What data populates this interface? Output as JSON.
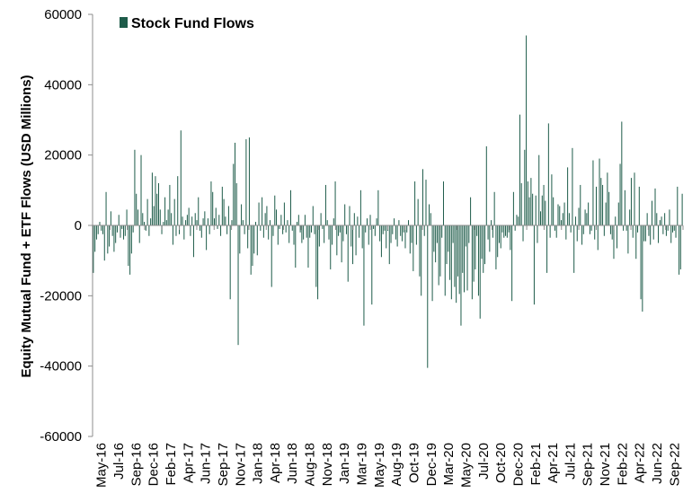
{
  "chart_data": {
    "type": "bar",
    "title": "",
    "xlabel": "",
    "ylabel": "Equity Mutual Fund + ETF Flows (USD Millions)",
    "ylim": [
      -60000,
      60000
    ],
    "yticks": [
      60000,
      40000,
      20000,
      0,
      -20000,
      -40000,
      -60000
    ],
    "ytick_labels": [
      "60000",
      "40000",
      "20000",
      "0",
      "-20000",
      "-40000",
      "-60000"
    ],
    "xtick_labels": [
      "May-16",
      "Jul-16",
      "Sep-16",
      "Dec-16",
      "Feb-17",
      "Apr-17",
      "Jun-17",
      "Sep-17",
      "Nov-17",
      "Jan-18",
      "Apr-18",
      "Jun-18",
      "Aug-18",
      "Nov-18",
      "Jan-19",
      "Mar-19",
      "May-19",
      "Aug-19",
      "Oct-19",
      "Dec-19",
      "Mar-20",
      "May-20",
      "Jul-20",
      "Oct-20",
      "Dec-20",
      "Feb-21",
      "Apr-21",
      "Jul-21",
      "Sep-21",
      "Nov-21",
      "Feb-22",
      "Apr-22",
      "Jun-22",
      "Sep-22"
    ],
    "legend": {
      "position": "top-left",
      "entries": [
        "Stock Fund Flows"
      ]
    },
    "colors": {
      "bar": "#1e5c4a",
      "axis": "#8c8c8c"
    },
    "grid": false,
    "series": [
      {
        "name": "Stock Fund Flows",
        "frequency": "weekly",
        "values": [
          -13500,
          -7500,
          -4000,
          -2500,
          1000,
          -1500,
          -2500,
          -10000,
          9500,
          -8000,
          -6000,
          4000,
          -3000,
          -7500,
          -5000,
          -2000,
          3000,
          -3500,
          -1000,
          -4000,
          -3000,
          4500,
          -11500,
          -14000,
          -8000,
          -2000,
          21500,
          9000,
          4500,
          -5000,
          20000,
          3500,
          1000,
          -1500,
          7500,
          -3000,
          2000,
          15000,
          5500,
          14000,
          9000,
          12000,
          4500,
          -2500,
          1000,
          8000,
          1500,
          4500,
          11500,
          3500,
          -5500,
          7500,
          -3000,
          14000,
          -2500,
          27000,
          2500,
          -4000,
          1500,
          3000,
          5000,
          -3000,
          2500,
          -9000,
          3500,
          1500,
          8000,
          -1500,
          -3500,
          2000,
          4000,
          -7000,
          2000,
          -2500,
          12500,
          9500,
          2000,
          5000,
          -1000,
          3000,
          -3000,
          11000,
          7500,
          2500,
          -2500,
          5500,
          -21000,
          1500,
          17500,
          23500,
          12000,
          -34000,
          -8000,
          6000,
          1500,
          -2500,
          24500,
          -6500,
          25000,
          -14000,
          -11500,
          -8000,
          1000,
          -8500,
          6500,
          -1500,
          8000,
          -3500,
          3500,
          5500,
          -4000,
          1500,
          -17500,
          -3000,
          8500,
          4500,
          -5500,
          -1000,
          3000,
          -2500,
          6500,
          -2000,
          1500,
          -5000,
          10000,
          -1500,
          -5500,
          -12000,
          1000,
          3000,
          -2000,
          -5000,
          -4000,
          3000,
          -3500,
          -12000,
          -3500,
          -2000,
          5500,
          -2500,
          -17500,
          -21000,
          -6000,
          3500,
          -1000,
          -5000,
          11500,
          1500,
          -4000,
          -12500,
          -5500,
          2000,
          12500,
          -8500,
          -3000,
          -2000,
          -10500,
          -4500,
          6000,
          -2500,
          -16000,
          5500,
          -6000,
          -11000,
          3500,
          -8500,
          2500,
          -3500,
          10000,
          -6500,
          -28500,
          -2000,
          2000,
          -5500,
          3000,
          -22500,
          -1000,
          -3000,
          2000,
          10000,
          -4500,
          -9000,
          -2500,
          -1500,
          -6500,
          -1500,
          -11000,
          -5000,
          -2500,
          2000,
          -4000,
          -6000,
          1500,
          -3000,
          -4500,
          -2000,
          -6500,
          -2000,
          1500,
          -8000,
          -5000,
          -13000,
          12500,
          -5500,
          7500,
          -14500,
          -20000,
          16000,
          -3000,
          13000,
          -40500,
          6000,
          3500,
          -21500,
          -7500,
          -10500,
          -5000,
          -17000,
          -14500,
          -3500,
          12500,
          -20000,
          -11000,
          -7500,
          -15500,
          -21000,
          -5000,
          -17500,
          -22000,
          -14500,
          -19500,
          -28500,
          -13500,
          -19000,
          -6000,
          -18500,
          -5000,
          8000,
          -21000,
          -16000,
          -12500,
          -3000,
          -20000,
          -26500,
          -9500,
          -13500,
          -11000,
          22500,
          -4000,
          -7500,
          1500,
          -3500,
          9500,
          -12500,
          -9000,
          -5000,
          -6500,
          -2000,
          -3500,
          -3000,
          -3500,
          -2000,
          -7000,
          -21500,
          9500,
          -1500,
          3000,
          2500,
          31500,
          12000,
          -4500,
          21500,
          54000,
          12500,
          8000,
          13500,
          9000,
          -22500,
          8500,
          -5000,
          20000,
          4000,
          8500,
          11500,
          7000,
          -13500,
          29000,
          -3500,
          14500,
          8000,
          -1500,
          -3500,
          6000,
          5500,
          1500,
          3500,
          6500,
          -4000,
          16500,
          3500,
          -2000,
          22000,
          -13500,
          2500,
          -4500,
          5000,
          11500,
          -5500,
          -2500,
          4500,
          3500,
          6500,
          -2500,
          -1500,
          18500,
          -4000,
          11000,
          -7000,
          19000,
          13500,
          11500,
          -3000,
          6500,
          15000,
          9500,
          -2500,
          -4000,
          -9500,
          2500,
          -6500,
          6500,
          17500,
          29500,
          -1500,
          10000,
          -1500,
          -8000,
          4500,
          13500,
          -3500,
          15000,
          -9500,
          -2000,
          11000,
          -21000,
          -24500,
          -4500,
          -4500,
          3500,
          -3000,
          -5500,
          7000,
          -4000,
          10500,
          3500,
          -5000,
          1500,
          2500,
          -2500,
          3500,
          -3000,
          -1500,
          4500,
          -5000,
          -2000,
          -1500,
          -3500,
          11000,
          -14000,
          -12500,
          9000
        ]
      }
    ]
  }
}
